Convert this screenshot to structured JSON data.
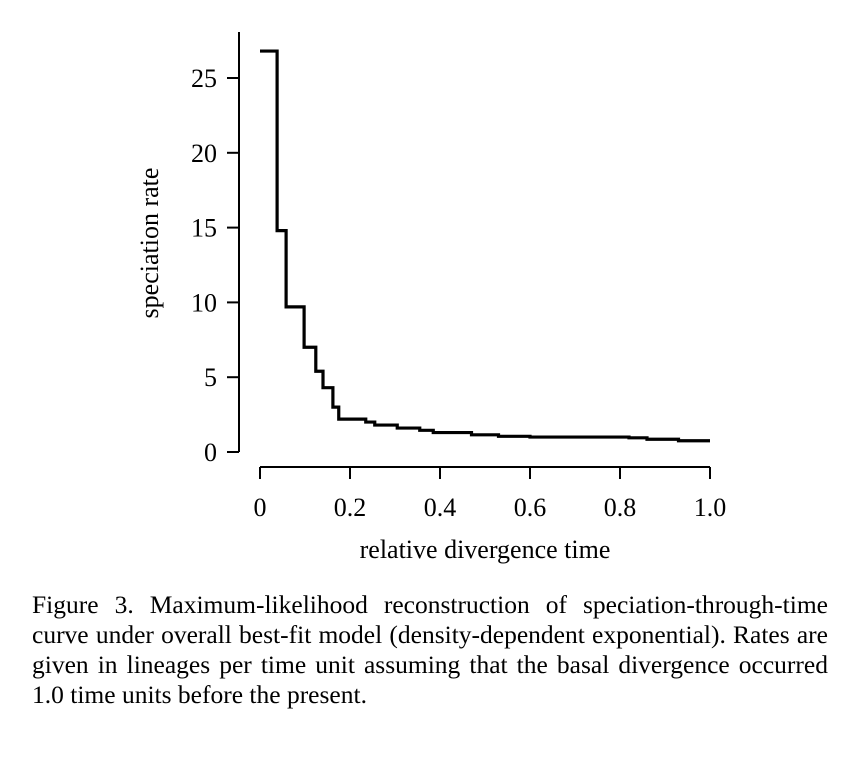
{
  "chart_data": {
    "type": "line",
    "step": true,
    "title": "",
    "xlabel": "relative divergence time",
    "ylabel": "speciation rate",
    "xlim": [
      0,
      1.0
    ],
    "ylim": [
      0,
      27
    ],
    "x_ticks": [
      0,
      0.2,
      0.4,
      0.6,
      0.8,
      1.0
    ],
    "x_tick_labels": [
      "0",
      "0.2",
      "0.4",
      "0.6",
      "0.8",
      "1.0"
    ],
    "y_ticks": [
      0,
      5,
      10,
      15,
      20,
      25
    ],
    "y_tick_labels": [
      "0",
      "5",
      "10",
      "15",
      "20",
      "25"
    ],
    "grid": false,
    "legend": "none",
    "series": [
      {
        "x": [
          0,
          0.038,
          0.058,
          0.098,
          0.124,
          0.14,
          0.162,
          0.175,
          0.235,
          0.255,
          0.305,
          0.355,
          0.385,
          0.47,
          0.53,
          0.6,
          0.82,
          0.86,
          0.93,
          1.0
        ],
        "y": [
          26.8,
          14.8,
          9.7,
          7.0,
          5.4,
          4.3,
          3.0,
          2.2,
          2.0,
          1.8,
          1.6,
          1.45,
          1.3,
          1.15,
          1.05,
          1.0,
          0.95,
          0.85,
          0.75,
          0.75
        ]
      }
    ]
  },
  "caption": "Figure 3. Maximum-likelihood reconstruction of speciation-through-time curve under overall best-fit model (density-dependent exponential). Rates are given in lineages per time unit assuming that the basal divergence occurred 1.0 time units before the present."
}
